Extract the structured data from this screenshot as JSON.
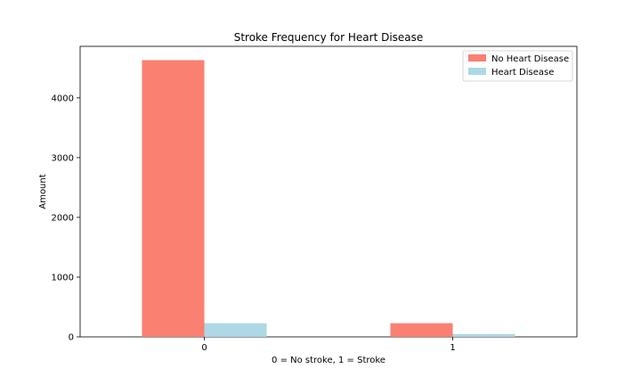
{
  "chart_data": {
    "type": "bar",
    "title": "Stroke Frequency for Heart Disease",
    "xlabel": "0 = No stroke, 1 = Stroke",
    "ylabel": "Amount",
    "categories": [
      "0",
      "1"
    ],
    "series": [
      {
        "name": "No Heart Disease",
        "color": "#fa8072",
        "values": [
          4632,
          229
        ]
      },
      {
        "name": "Heart Disease",
        "color": "#add8e6",
        "values": [
          229,
          47
        ]
      }
    ],
    "ylim": [
      0,
      4863
    ],
    "yticks": [
      0,
      1000,
      2000,
      3000,
      4000
    ],
    "legend_position": "top-right",
    "grid": false
  }
}
